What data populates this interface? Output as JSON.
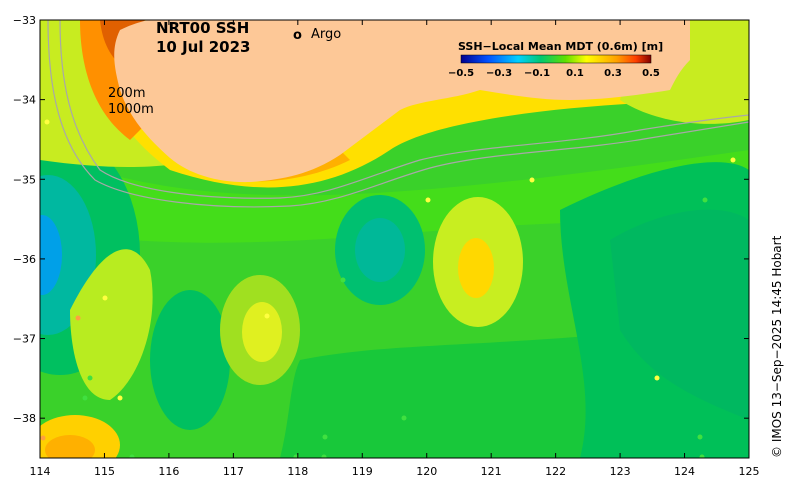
{
  "map": {
    "title_line1": "NRT00 SSH",
    "title_line2": "10 Jul 2023",
    "legend_marker": "o",
    "legend_label": "Argo",
    "legend_marker_color": "#ff00ff",
    "contour_label_1": "200m",
    "contour_label_2": "1000m",
    "land_color": "#fdc897",
    "colorbar_title": "SSH−Local Mean MDT (0.6m) [m]",
    "colorbar_ticks": [
      "−0.5",
      "−0.3",
      "−0.1",
      "0.1",
      "0.3",
      "0.5"
    ],
    "x_ticks": [
      "114",
      "115",
      "116",
      "117",
      "118",
      "119",
      "120",
      "121",
      "122",
      "123",
      "124",
      "125"
    ],
    "y_ticks": [
      "−33",
      "−34",
      "−35",
      "−36",
      "−37",
      "−38"
    ],
    "credit": "© IMOS 13−Sep−2025 14:45 Hobart",
    "lon_range": [
      114,
      125
    ],
    "lat_range": [
      -38.5,
      -33
    ]
  }
}
